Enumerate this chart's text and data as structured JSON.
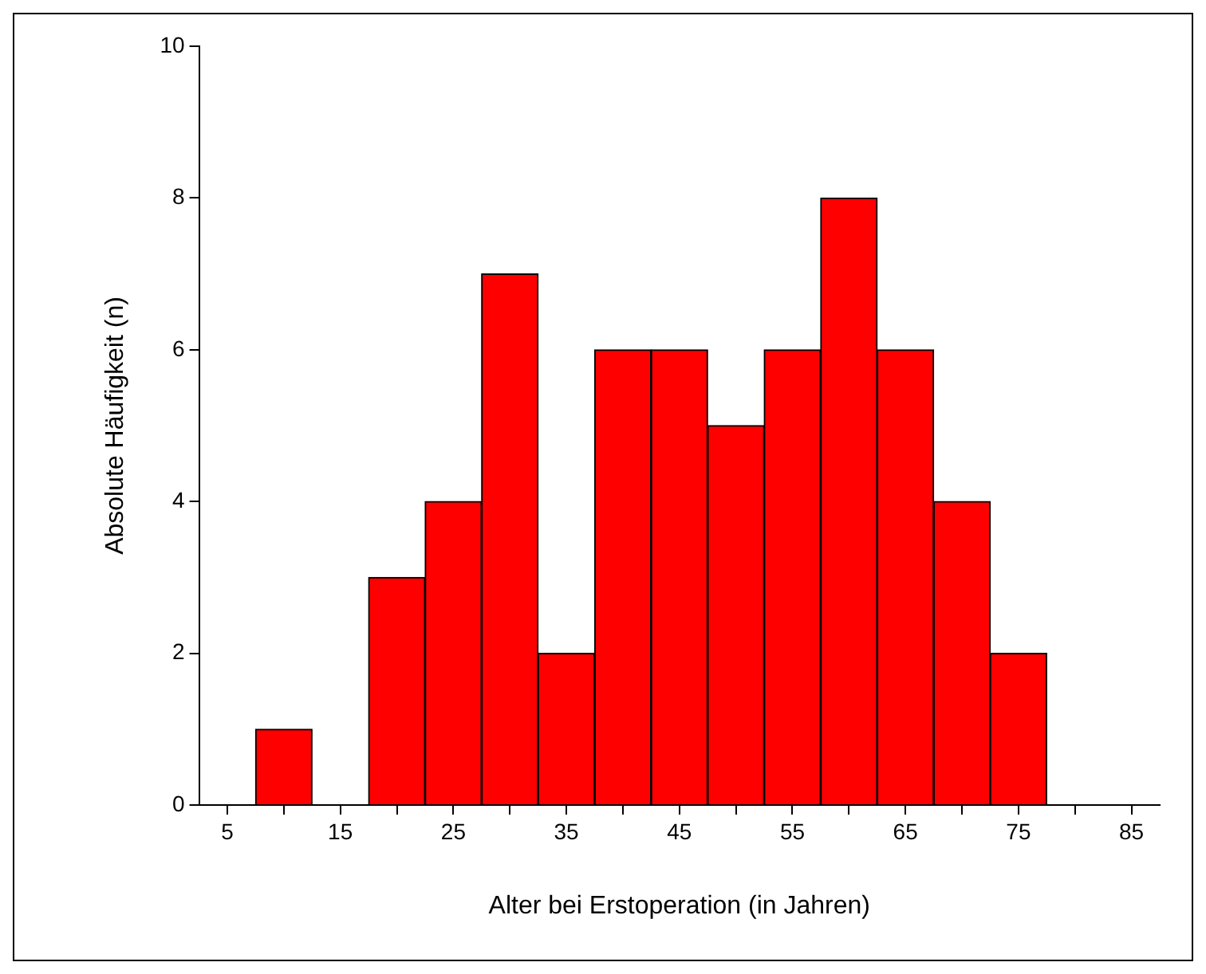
{
  "chart_data": {
    "type": "histogram",
    "xlabel": "Alter bei Erstoperation (in Jahren)",
    "ylabel": "Absolute Häufigkeit (n)",
    "bins": [
      7.5,
      12.5,
      17.5,
      22.5,
      27.5,
      32.5,
      37.5,
      42.5,
      47.5,
      52.5,
      57.5,
      62.5,
      67.5,
      72.5,
      77.5
    ],
    "values": [
      1,
      0,
      3,
      4,
      7,
      2,
      6,
      6,
      5,
      6,
      8,
      6,
      4,
      2
    ],
    "color": "#ff0000",
    "xlim": [
      2.5,
      87.5
    ],
    "xticks": [
      5,
      {
        "value": 10,
        "label": null
      },
      15,
      {
        "value": 20,
        "label": null
      },
      25,
      {
        "value": 30,
        "label": null
      },
      35,
      {
        "value": 40,
        "label": null
      },
      45,
      {
        "value": 50,
        "label": null
      },
      55,
      {
        "value": 60,
        "label": null
      },
      65,
      {
        "value": 70,
        "label": null
      },
      75,
      {
        "value": 80,
        "label": null
      },
      85
    ],
    "ylim": [
      0,
      10
    ],
    "yticks": [
      0,
      2,
      4,
      6,
      8,
      10
    ],
    "grid": false,
    "legend": false
  }
}
